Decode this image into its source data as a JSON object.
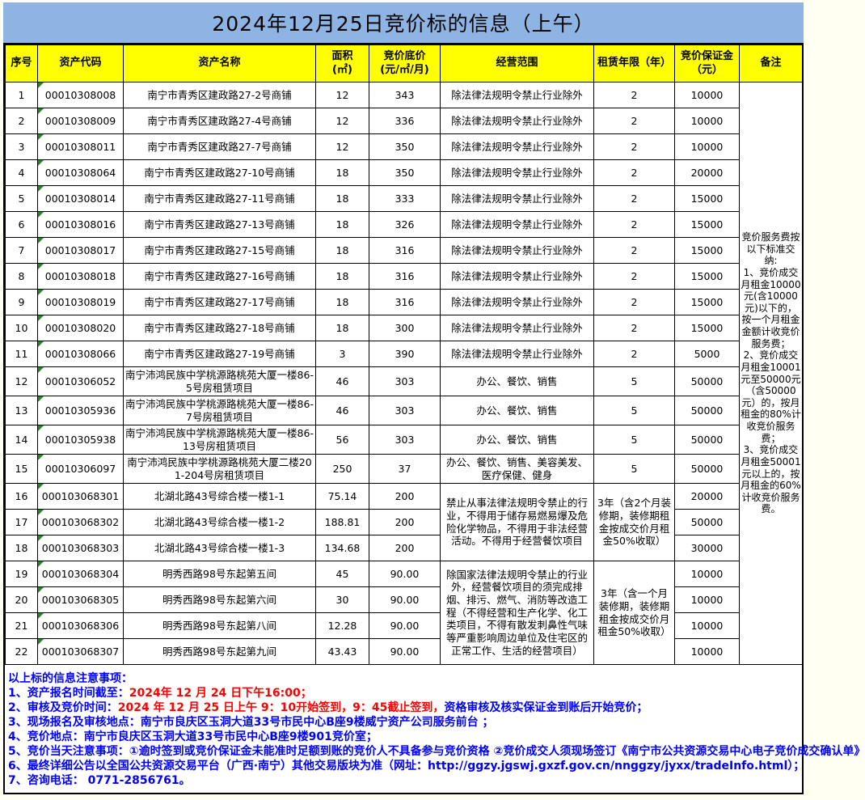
{
  "title": "2024年12月25日竞价标的信息（上午）",
  "colors": {
    "title_bg": "#8db4e2",
    "header_bg": "#ffff00",
    "note_blue": "#0000ff",
    "note_red": "#ff0000",
    "flag_green": "#1e8b1e"
  },
  "table": {
    "headers": [
      "序号",
      "资产代码",
      "资产名称",
      "面积\n(㎡)",
      "竞价底价\n(元/㎡/月)",
      "经营范围",
      "租赁年限（年）",
      "竞价保证金\n（元）",
      "备注"
    ],
    "remark": "竞价服务费按以下标准交纳:\n1、竞价成交月租金10000元(含10000元)以下的，按一个月租金金额计收竞价服务费；\n2、竞价成交月租金10001元至50000元（含50000元）的，按月租金的80%计收竞价服务费；\n3、竞价成交月租金50001元以上的，按月租金的60%计收竞价服务费。",
    "rows": [
      {
        "no": "1",
        "code": "00010308008",
        "name": "南宁市青秀区建政路27-2号商铺",
        "area": "12",
        "price": "343",
        "scope": "除法律法规明令禁止行业除外",
        "term": "2",
        "deposit": "10000"
      },
      {
        "no": "2",
        "code": "00010308009",
        "name": "南宁市青秀区建政路27-4号商铺",
        "area": "12",
        "price": "336",
        "scope": "除法律法规明令禁止行业除外",
        "term": "2",
        "deposit": "10000"
      },
      {
        "no": "3",
        "code": "00010308011",
        "name": "南宁市青秀区建政路27-7号商铺",
        "area": "12",
        "price": "350",
        "scope": "除法律法规明令禁止行业除外",
        "term": "2",
        "deposit": "10000"
      },
      {
        "no": "4",
        "code": "00010308064",
        "name": "南宁市青秀区建政路27-10号商铺",
        "area": "18",
        "price": "350",
        "scope": "除法律法规明令禁止行业除外",
        "term": "2",
        "deposit": "20000"
      },
      {
        "no": "5",
        "code": "00010308014",
        "name": "南宁市青秀区建政路27-11号商铺",
        "area": "18",
        "price": "333",
        "scope": "除法律法规明令禁止行业除外",
        "term": "2",
        "deposit": "15000"
      },
      {
        "no": "6",
        "code": "00010308016",
        "name": "南宁市青秀区建政路27-13号商铺",
        "area": "18",
        "price": "326",
        "scope": "除法律法规明令禁止行业除外",
        "term": "2",
        "deposit": "15000"
      },
      {
        "no": "7",
        "code": "00010308017",
        "name": "南宁市青秀区建政路27-15号商铺",
        "area": "18",
        "price": "316",
        "scope": "除法律法规明令禁止行业除外",
        "term": "2",
        "deposit": "15000"
      },
      {
        "no": "8",
        "code": "00010308018",
        "name": "南宁市青秀区建政路27-16号商铺",
        "area": "18",
        "price": "316",
        "scope": "除法律法规明令禁止行业除外",
        "term": "2",
        "deposit": "15000"
      },
      {
        "no": "9",
        "code": "00010308019",
        "name": "南宁市青秀区建政路27-17号商铺",
        "area": "18",
        "price": "316",
        "scope": "除法律法规明令禁止行业除外",
        "term": "2",
        "deposit": "15000"
      },
      {
        "no": "10",
        "code": "00010308020",
        "name": "南宁市青秀区建政路27-18号商铺",
        "area": "18",
        "price": "300",
        "scope": "除法律法规明令禁止行业除外",
        "term": "2",
        "deposit": "15000"
      },
      {
        "no": "11",
        "code": "00010308066",
        "name": "南宁市青秀区建政路27-19号商铺",
        "area": "3",
        "price": "390",
        "scope": "除法律法规明令禁止行业除外",
        "term": "2",
        "deposit": "5000"
      },
      {
        "no": "12",
        "code": "00010306052",
        "name": "南宁沛鸿民族中学桃源路桃苑大厦一楼86-5号房租赁项目",
        "area": "46",
        "price": "303",
        "scope": "办公、餐饮、销售",
        "term": "5",
        "deposit": "50000",
        "tall": true
      },
      {
        "no": "13",
        "code": "00010305936",
        "name": "南宁沛鸿民族中学桃源路桃苑大厦一楼86-7号房租赁项目",
        "area": "46",
        "price": "303",
        "scope": "办公、餐饮、销售",
        "term": "5",
        "deposit": "50000",
        "tall": true
      },
      {
        "no": "14",
        "code": "00010305938",
        "name": "南宁沛鸿民族中学桃源路桃苑大厦一楼86-13号房租赁项目",
        "area": "56",
        "price": "303",
        "scope": "办公、餐饮、销售",
        "term": "5",
        "deposit": "50000",
        "tall": true
      },
      {
        "no": "15",
        "code": "00010306097",
        "name": "南宁沛鸿民族中学桃源路桃苑大厦二楼201-204号房租赁项目",
        "area": "250",
        "price": "37",
        "scope": "办公、餐饮、销售、美容美发、医疗保健、健身",
        "term": "5",
        "deposit": "50000",
        "tall": true
      },
      {
        "no": "16",
        "code": "000103068301",
        "name": "北湖北路43号综合楼一楼1-1",
        "area": "75.14",
        "price": "200",
        "scope": "禁止从事法律法规明令禁止的行业，不得用于储存易燃易爆及危险化学物品，不得用于非法经营活动。不得用于经营餐饮项目",
        "scope_rows": 3,
        "term": "3年（含2个月装修期，装修期租金按成交价月租金50%收取）",
        "term_rows": 3,
        "deposit": "20000"
      },
      {
        "no": "17",
        "code": "000103068302",
        "name": "北湖北路43号综合楼一楼1-2",
        "area": "188.81",
        "price": "200",
        "deposit": "50000"
      },
      {
        "no": "18",
        "code": "000103068303",
        "name": "北湖北路43号综合楼一楼1-3",
        "area": "134.68",
        "price": "200",
        "deposit": "30000"
      },
      {
        "no": "19",
        "code": "000103068304",
        "name": "明秀西路98号东起第五间",
        "area": "45",
        "price": "90.00",
        "scope": "除国家法律法规明令禁止的行业外，经营餐饮项目的须完成排烟、排污、燃气、消防等改造工程（不得经营和生产化学、化工类项目，不得有散发刺鼻性气味等严重影响周边单位及住宅区的正常工作、生活的经营项目）",
        "scope_rows": 4,
        "term": "3年（含一个月装修期，装修期租金按成交价月租金50%收取）",
        "term_rows": 4,
        "deposit": "10000"
      },
      {
        "no": "20",
        "code": "000103068305",
        "name": "明秀西路98号东起第六间",
        "area": "30",
        "price": "90.00",
        "deposit": "10000"
      },
      {
        "no": "21",
        "code": "000103068306",
        "name": "明秀西路98号东起第八间",
        "area": "12.28",
        "price": "90.00",
        "deposit": "10000"
      },
      {
        "no": "22",
        "code": "000103068307",
        "name": "明秀西路98号东起第九间",
        "area": "43.43",
        "price": "90.00",
        "deposit": "10000"
      }
    ]
  },
  "notes": [
    [
      {
        "t": "以上标的信息注意事项：",
        "c": "blue"
      }
    ],
    [
      {
        "t": "1、资产报名时间截至：",
        "c": "blue"
      },
      {
        "t": "2024年 12 月 24 日下午16:00；",
        "c": "red"
      }
    ],
    [
      {
        "t": "2、审核及竞价时间：",
        "c": "blue"
      },
      {
        "t": "2024 年 12 月 25 日上午 9：10开始签到，9：45截止签到，",
        "c": "red"
      },
      {
        "t": "资格审核及核实保证金到账后开始竞价；",
        "c": "blue"
      }
    ],
    [
      {
        "t": "3、现场报名及审核地点：南宁市良庆区玉洞大道33号市民中心B座9楼威宁资产公司服务前台 ；",
        "c": "blue"
      }
    ],
    [
      {
        "t": "4、竞价地点：南宁市良庆区玉洞大道33号市民中心B座9楼901竞价室；",
        "c": "blue"
      }
    ],
    [
      {
        "t": "5、竞价当天注意事项：①逾时签到或竞价保证金未能准时足额到账的竞价人不具备参与竞价资格 ②竞价成交人须现场签订《南宁市公共资源交易中心电子竞价成交确认单》",
        "c": "blue"
      }
    ],
    [
      {
        "t": "6、最终详细公告以全国公共资源交易平台（广西·南宁）其他交易版块为准（网址：http://ggzy.jgswj.gxzf.gov.cn/nnggzy/jyxx/tradeInfo.html）；",
        "c": "blue"
      }
    ],
    [
      {
        "t": "7、咨询电话： 0771-2856761。",
        "c": "blue"
      }
    ]
  ]
}
